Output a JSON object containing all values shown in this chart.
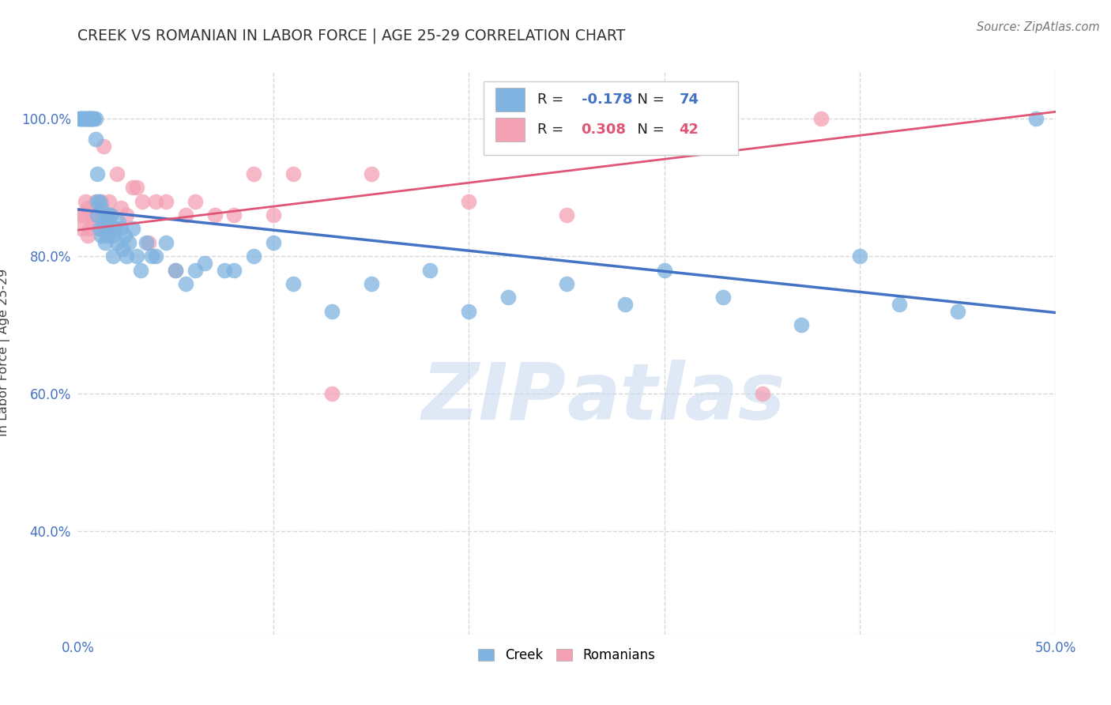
{
  "title": "CREEK VS ROMANIAN IN LABOR FORCE | AGE 25-29 CORRELATION CHART",
  "source": "Source: ZipAtlas.com",
  "ylabel": "In Labor Force | Age 25-29",
  "xlim": [
    0.0,
    0.5
  ],
  "ylim": [
    0.25,
    1.07
  ],
  "xticks": [
    0.0,
    0.1,
    0.2,
    0.3,
    0.4,
    0.5
  ],
  "yticks": [
    0.4,
    0.6,
    0.8,
    1.0
  ],
  "ytick_labels": [
    "40.0%",
    "60.0%",
    "80.0%",
    "100.0%"
  ],
  "xtick_labels_ends": [
    "0.0%",
    "50.0%"
  ],
  "creek_color": "#7fb3e0",
  "romanian_color": "#f4a0b5",
  "creek_line_color": "#4472c4",
  "romanian_line_color": "#e05575",
  "creek_R": -0.178,
  "creek_N": 74,
  "romanian_R": 0.308,
  "romanian_N": 42,
  "watermark_zip": "ZIP",
  "watermark_atlas": "atlas",
  "background_color": "#ffffff",
  "grid_color": "#d8d8d8",
  "creek_scatter_x": [
    0.001,
    0.001,
    0.002,
    0.002,
    0.003,
    0.003,
    0.004,
    0.004,
    0.005,
    0.005,
    0.005,
    0.006,
    0.006,
    0.006,
    0.007,
    0.007,
    0.007,
    0.008,
    0.008,
    0.009,
    0.009,
    0.01,
    0.01,
    0.01,
    0.011,
    0.011,
    0.012,
    0.012,
    0.013,
    0.014,
    0.015,
    0.015,
    0.016,
    0.017,
    0.018,
    0.018,
    0.019,
    0.02,
    0.021,
    0.022,
    0.023,
    0.024,
    0.025,
    0.026,
    0.028,
    0.03,
    0.032,
    0.035,
    0.038,
    0.04,
    0.045,
    0.05,
    0.055,
    0.06,
    0.065,
    0.075,
    0.08,
    0.09,
    0.1,
    0.11,
    0.13,
    0.15,
    0.18,
    0.2,
    0.22,
    0.25,
    0.28,
    0.3,
    0.33,
    0.37,
    0.4,
    0.42,
    0.45,
    0.49
  ],
  "creek_scatter_y": [
    1.0,
    1.0,
    1.0,
    1.0,
    1.0,
    1.0,
    1.0,
    1.0,
    1.0,
    1.0,
    1.0,
    1.0,
    1.0,
    1.0,
    1.0,
    1.0,
    1.0,
    1.0,
    1.0,
    1.0,
    0.97,
    0.92,
    0.88,
    0.86,
    0.88,
    0.84,
    0.87,
    0.83,
    0.85,
    0.82,
    0.86,
    0.83,
    0.85,
    0.86,
    0.83,
    0.8,
    0.84,
    0.82,
    0.85,
    0.84,
    0.81,
    0.83,
    0.8,
    0.82,
    0.84,
    0.8,
    0.78,
    0.82,
    0.8,
    0.8,
    0.82,
    0.78,
    0.76,
    0.78,
    0.79,
    0.78,
    0.78,
    0.8,
    0.82,
    0.76,
    0.72,
    0.76,
    0.78,
    0.72,
    0.74,
    0.76,
    0.73,
    0.78,
    0.74,
    0.7,
    0.8,
    0.73,
    0.72,
    1.0
  ],
  "romanian_scatter_x": [
    0.001,
    0.002,
    0.003,
    0.004,
    0.005,
    0.005,
    0.006,
    0.007,
    0.008,
    0.009,
    0.01,
    0.011,
    0.012,
    0.013,
    0.014,
    0.015,
    0.016,
    0.017,
    0.018,
    0.02,
    0.022,
    0.025,
    0.028,
    0.03,
    0.033,
    0.036,
    0.04,
    0.045,
    0.05,
    0.055,
    0.06,
    0.07,
    0.08,
    0.09,
    0.1,
    0.11,
    0.13,
    0.15,
    0.2,
    0.25,
    0.35,
    0.38
  ],
  "romanian_scatter_y": [
    0.86,
    0.84,
    0.86,
    0.88,
    0.87,
    0.83,
    0.84,
    0.86,
    0.85,
    0.88,
    0.86,
    0.84,
    0.88,
    0.96,
    0.84,
    0.86,
    0.88,
    0.86,
    0.84,
    0.92,
    0.87,
    0.86,
    0.9,
    0.9,
    0.88,
    0.82,
    0.88,
    0.88,
    0.78,
    0.86,
    0.88,
    0.86,
    0.86,
    0.92,
    0.86,
    0.92,
    0.6,
    0.92,
    0.88,
    0.86,
    0.6,
    1.0
  ],
  "creek_trend_x": [
    0.0,
    0.5
  ],
  "creek_trend_y": [
    0.868,
    0.718
  ],
  "romanian_trend_x": [
    0.0,
    0.5
  ],
  "romanian_trend_y": [
    0.838,
    1.01
  ]
}
